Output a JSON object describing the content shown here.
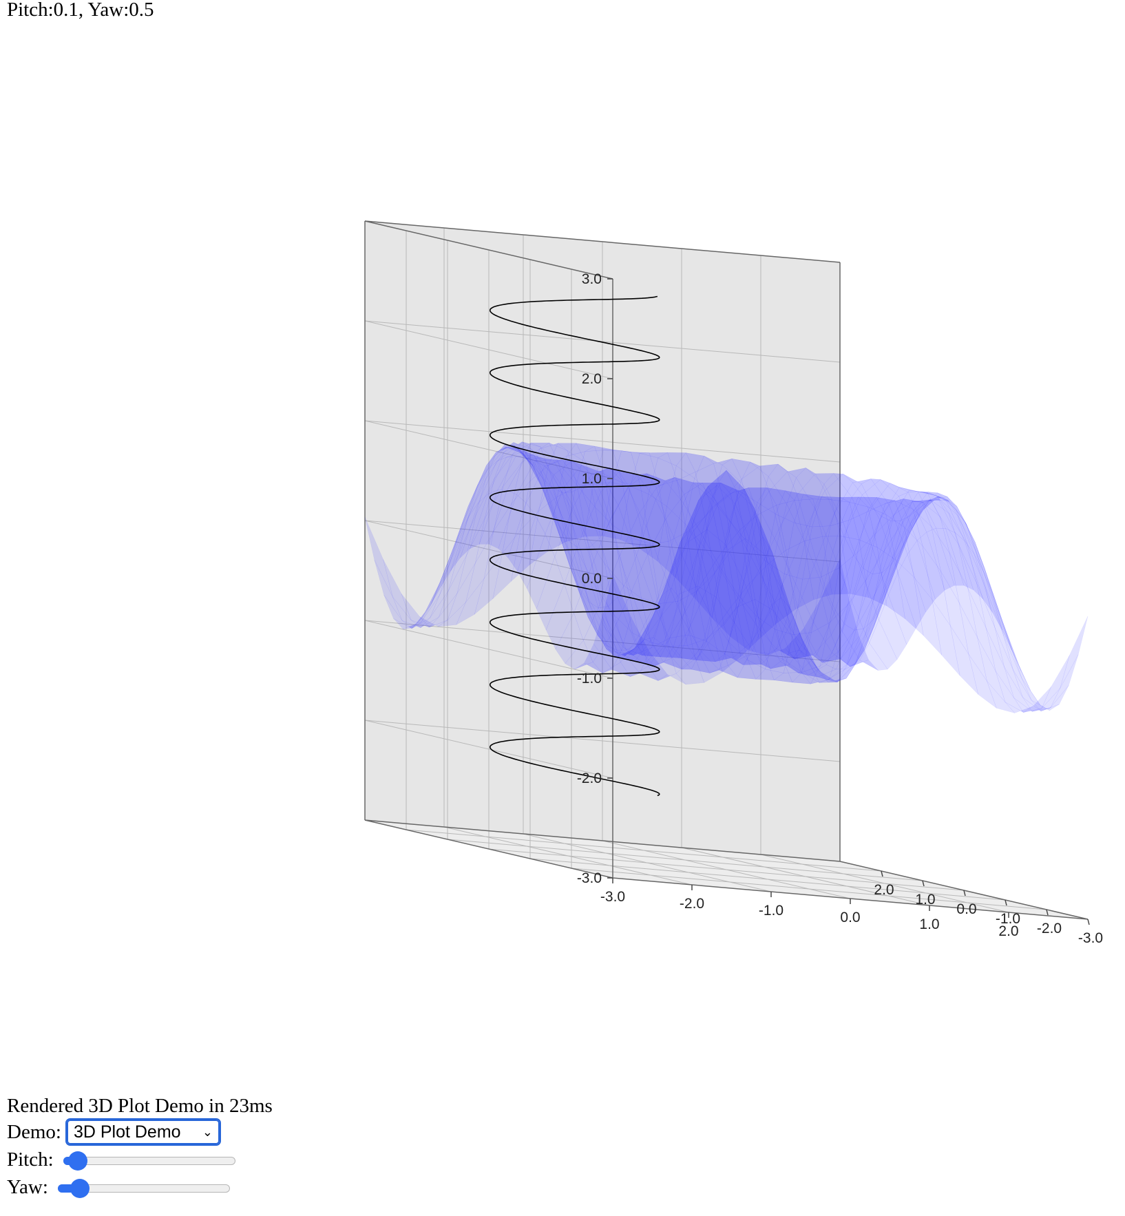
{
  "status": {
    "text": "Pitch:0.1, Yaw:0.5"
  },
  "chart_data": {
    "type": "surface3d",
    "x_ticks": [
      "-3.0",
      "-2.0",
      "-1.0",
      "0.0",
      "1.0",
      "2.0"
    ],
    "y_ticks": [
      "2.0",
      "1.0",
      "0.0",
      "-1.0",
      "-2.0",
      "-3.0"
    ],
    "z_ticks": [
      "3.0",
      "2.0",
      "1.0",
      "0.0",
      "-1.0",
      "-2.0",
      "-3.0"
    ],
    "xlim": [
      -3,
      3
    ],
    "ylim": [
      -3,
      3
    ],
    "zlim": [
      -3,
      3
    ],
    "grid": true,
    "series": [
      {
        "kind": "surface",
        "color": "#1a1aff",
        "opacity": 0.35
      },
      {
        "kind": "helix",
        "color": "#000000",
        "turns": 8,
        "z_range": [
          -2.5,
          2.5
        ]
      }
    ]
  },
  "controls": {
    "render_text": "Rendered 3D Plot Demo in 23ms",
    "demo_label": "Demo:",
    "demo_selected": "3D Plot Demo",
    "pitch_label": "Pitch:",
    "pitch_value": 0.1,
    "yaw_label": "Yaw:",
    "yaw_value": 0.5
  },
  "colors": {
    "accent": "#2f6ff0",
    "panel_bg": "#e6e6e6",
    "grid": "#b8b8b8",
    "surface": "#1a1aff"
  }
}
